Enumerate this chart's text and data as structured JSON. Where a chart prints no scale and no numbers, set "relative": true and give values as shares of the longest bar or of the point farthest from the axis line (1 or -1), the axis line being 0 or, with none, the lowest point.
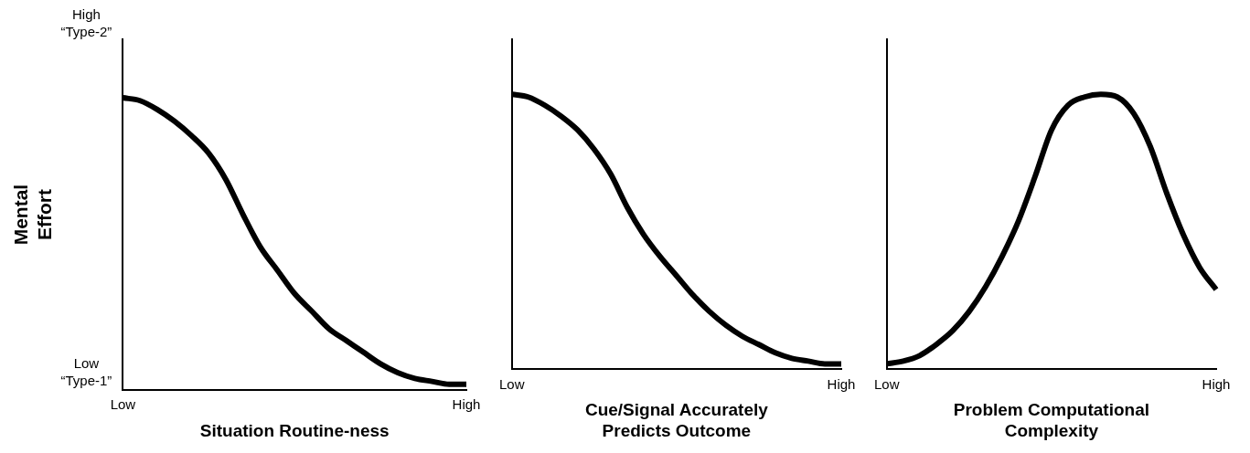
{
  "chart_data": [
    {
      "type": "line",
      "relative": true,
      "ylabel": "Mental Effort",
      "xlabel": "Situation Routine-ness",
      "annotations": [
        "High “Type-2”",
        "Low “Type-1”"
      ],
      "marker": "none",
      "line_style": "solid",
      "grid": false,
      "legend": false,
      "categories": [
        "Low",
        null,
        null,
        null,
        null,
        null,
        null,
        null,
        null,
        null,
        null,
        null,
        null,
        null,
        null,
        null,
        null,
        null,
        null,
        null,
        "High"
      ],
      "series": [
        {
          "color": "#000000",
          "values": [
            1,
            0.99,
            0.96,
            0.92,
            0.87,
            0.81,
            0.72,
            0.6,
            0.49,
            0.41,
            0.33,
            0.27,
            0.21,
            0.17,
            0.13,
            0.09,
            0.06,
            0.04,
            0.03,
            0.02,
            0.02
          ]
        }
      ]
    },
    {
      "type": "line",
      "relative": true,
      "xlabel": "Cue/Signal Accurately Predicts Outcome",
      "marker": "none",
      "line_style": "solid",
      "grid": false,
      "legend": false,
      "categories": [
        "Low",
        null,
        null,
        null,
        null,
        null,
        null,
        null,
        null,
        null,
        null,
        null,
        null,
        null,
        null,
        null,
        null,
        null,
        null,
        null,
        "High"
      ],
      "series": [
        {
          "color": "#000000",
          "values": [
            1,
            0.99,
            0.96,
            0.92,
            0.87,
            0.8,
            0.71,
            0.59,
            0.49,
            0.41,
            0.34,
            0.27,
            0.21,
            0.16,
            0.12,
            0.09,
            0.06,
            0.04,
            0.03,
            0.02,
            0.02
          ]
        }
      ]
    },
    {
      "type": "line",
      "relative": true,
      "xlabel": "Problem Computational Complexity",
      "marker": "none",
      "line_style": "solid",
      "grid": false,
      "legend": false,
      "categories": [
        "Low",
        null,
        null,
        null,
        null,
        null,
        null,
        null,
        null,
        null,
        null,
        null,
        null,
        null,
        null,
        null,
        null,
        null,
        null,
        null,
        "High"
      ],
      "series": [
        {
          "color": "#000000",
          "values": [
            0.02,
            0.03,
            0.05,
            0.09,
            0.14,
            0.21,
            0.3,
            0.41,
            0.54,
            0.7,
            0.87,
            0.96,
            0.99,
            1,
            0.99,
            0.93,
            0.81,
            0.64,
            0.49,
            0.37,
            0.29
          ]
        }
      ]
    }
  ]
}
